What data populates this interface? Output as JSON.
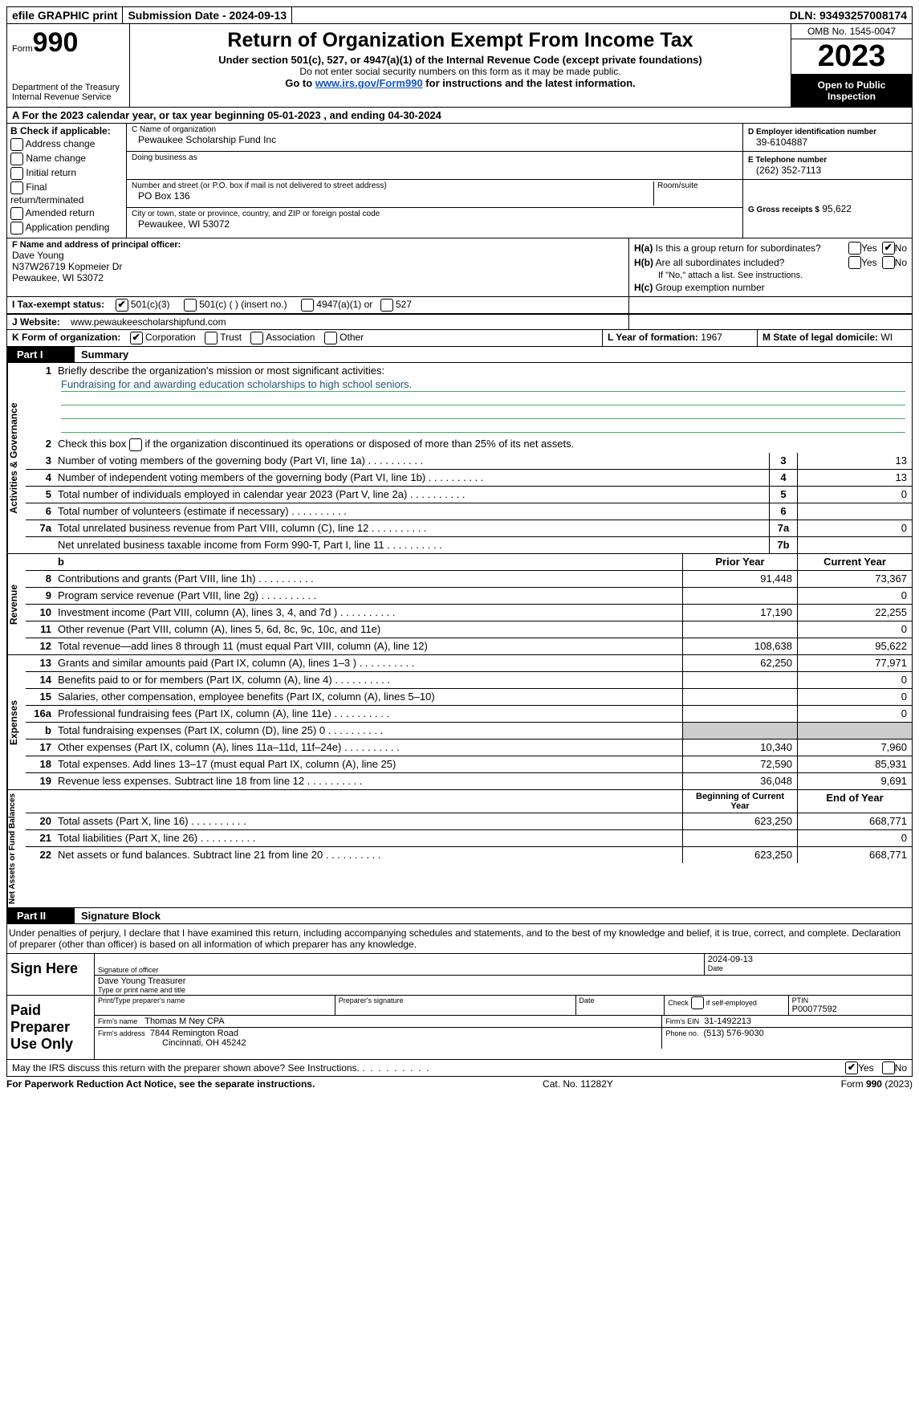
{
  "topbar": {
    "efile": "efile GRAPHIC print",
    "submission": "Submission Date - 2024-09-13",
    "dln": "DLN: 93493257008174"
  },
  "header": {
    "form_prefix": "Form",
    "form_number": "990",
    "title": "Return of Organization Exempt From Income Tax",
    "subtitle": "Under section 501(c), 527, or 4947(a)(1) of the Internal Revenue Code (except private foundations)",
    "note1": "Do not enter social security numbers on this form as it may be made public.",
    "note2_prefix": "Go to ",
    "note2_link": "www.irs.gov/Form990",
    "note2_suffix": " for instructions and the latest information.",
    "dept": "Department of the Treasury Internal Revenue Service",
    "omb": "OMB No. 1545-0047",
    "year": "2023",
    "open": "Open to Public Inspection"
  },
  "line_a": "A For the 2023 calendar year, or tax year beginning 05-01-2023   , and ending 04-30-2024",
  "box_b": {
    "title": "B Check if applicable:",
    "items": [
      "Address change",
      "Name change",
      "Initial return",
      "Final return/terminated",
      "Amended return",
      "Application pending"
    ]
  },
  "box_c": {
    "name_label": "C Name of organization",
    "name": "Pewaukee Scholarship Fund Inc",
    "dba_label": "Doing business as",
    "dba": "",
    "street_label": "Number and street (or P.O. box if mail is not delivered to street address)",
    "room_label": "Room/suite",
    "street": "PO Box 136",
    "city_label": "City or town, state or province, country, and ZIP or foreign postal code",
    "city": "Pewaukee, WI  53072"
  },
  "box_d": {
    "ein_label": "D Employer identification number",
    "ein": "39-6104887",
    "phone_label": "E Telephone number",
    "phone": "(262) 352-7113",
    "receipts_label": "G Gross receipts $",
    "receipts": "95,622"
  },
  "box_f": {
    "label": "F  Name and address of principal officer:",
    "name": "Dave Young",
    "addr1": "N37W26719 Kopmeier Dr",
    "addr2": "Pewaukee, WI  53072"
  },
  "box_h": {
    "a_label": "H(a)  Is this a group return for subordinates?",
    "b_label": "H(b)  Are all subordinates included?",
    "b_note": "If \"No,\" attach a list. See instructions.",
    "c_label": "H(c)  Group exemption number",
    "yes": "Yes",
    "no": "No"
  },
  "box_i": {
    "label": "I   Tax-exempt status:",
    "opt1": "501(c)(3)",
    "opt2": "501(c) (   ) (insert no.)",
    "opt3": "4947(a)(1) or",
    "opt4": "527"
  },
  "box_j": {
    "label": "J   Website:",
    "value": "www.pewaukeescholarshipfund.com"
  },
  "box_k": {
    "label": "K Form of organization:",
    "opts": [
      "Corporation",
      "Trust",
      "Association",
      "Other"
    ]
  },
  "box_l": {
    "label": "L Year of formation:",
    "value": "1967"
  },
  "box_m": {
    "label": "M State of legal domicile:",
    "value": "WI"
  },
  "part1": {
    "label": "Part I",
    "title": "Summary",
    "line1_label": "Briefly describe the organization's mission or most significant activities:",
    "mission": "Fundraising for and awarding education scholarships to high school seniors.",
    "line2": "Check this box      if the organization discontinued its operations or disposed of more than 25% of its net assets.",
    "rows_gov": [
      {
        "n": "3",
        "d": "Number of voting members of the governing body (Part VI, line 1a)",
        "box": "3",
        "v": "13"
      },
      {
        "n": "4",
        "d": "Number of independent voting members of the governing body (Part VI, line 1b)",
        "box": "4",
        "v": "13"
      },
      {
        "n": "5",
        "d": "Total number of individuals employed in calendar year 2023 (Part V, line 2a)",
        "box": "5",
        "v": "0"
      },
      {
        "n": "6",
        "d": "Total number of volunteers (estimate if necessary)",
        "box": "6",
        "v": ""
      },
      {
        "n": "7a",
        "d": "Total unrelated business revenue from Part VIII, column (C), line 12",
        "box": "7a",
        "v": "0"
      },
      {
        "n": "",
        "d": "Net unrelated business taxable income from Form 990-T, Part I, line 11",
        "box": "7b",
        "v": ""
      }
    ],
    "col_headers": {
      "prior": "Prior Year",
      "current": "Current Year"
    },
    "rows_rev": [
      {
        "n": "8",
        "d": "Contributions and grants (Part VIII, line 1h)",
        "p": "91,448",
        "c": "73,367"
      },
      {
        "n": "9",
        "d": "Program service revenue (Part VIII, line 2g)",
        "p": "",
        "c": "0"
      },
      {
        "n": "10",
        "d": "Investment income (Part VIII, column (A), lines 3, 4, and 7d )",
        "p": "17,190",
        "c": "22,255"
      },
      {
        "n": "11",
        "d": "Other revenue (Part VIII, column (A), lines 5, 6d, 8c, 9c, 10c, and 11e)",
        "p": "",
        "c": "0"
      },
      {
        "n": "12",
        "d": "Total revenue—add lines 8 through 11 (must equal Part VIII, column (A), line 12)",
        "p": "108,638",
        "c": "95,622"
      }
    ],
    "rows_exp": [
      {
        "n": "13",
        "d": "Grants and similar amounts paid (Part IX, column (A), lines 1–3 )",
        "p": "62,250",
        "c": "77,971"
      },
      {
        "n": "14",
        "d": "Benefits paid to or for members (Part IX, column (A), line 4)",
        "p": "",
        "c": "0"
      },
      {
        "n": "15",
        "d": "Salaries, other compensation, employee benefits (Part IX, column (A), lines 5–10)",
        "p": "",
        "c": "0"
      },
      {
        "n": "16a",
        "d": "Professional fundraising fees (Part IX, column (A), line 11e)",
        "p": "",
        "c": "0"
      },
      {
        "n": "b",
        "d": "Total fundraising expenses (Part IX, column (D), line 25) 0",
        "p": "shaded",
        "c": "shaded"
      },
      {
        "n": "17",
        "d": "Other expenses (Part IX, column (A), lines 11a–11d, 11f–24e)",
        "p": "10,340",
        "c": "7,960"
      },
      {
        "n": "18",
        "d": "Total expenses. Add lines 13–17 (must equal Part IX, column (A), line 25)",
        "p": "72,590",
        "c": "85,931"
      },
      {
        "n": "19",
        "d": "Revenue less expenses. Subtract line 18 from line 12",
        "p": "36,048",
        "c": "9,691"
      }
    ],
    "col_headers2": {
      "begin": "Beginning of Current Year",
      "end": "End of Year"
    },
    "rows_net": [
      {
        "n": "20",
        "d": "Total assets (Part X, line 16)",
        "p": "623,250",
        "c": "668,771"
      },
      {
        "n": "21",
        "d": "Total liabilities (Part X, line 26)",
        "p": "",
        "c": "0"
      },
      {
        "n": "22",
        "d": "Net assets or fund balances. Subtract line 21 from line 20",
        "p": "623,250",
        "c": "668,771"
      }
    ],
    "side_labels": {
      "gov": "Activities & Governance",
      "rev": "Revenue",
      "exp": "Expenses",
      "net": "Net Assets or Fund Balances"
    }
  },
  "part2": {
    "label": "Part II",
    "title": "Signature Block",
    "declaration": "Under penalties of perjury, I declare that I have examined this return, including accompanying schedules and statements, and to the best of my knowledge and belief, it is true, correct, and complete. Declaration of preparer (other than officer) is based on all information of which preparer has any knowledge."
  },
  "sign_here": {
    "label": "Sign Here",
    "sig_label": "Signature of officer",
    "date_label": "Date",
    "date": "2024-09-13",
    "name": "Dave Young  Treasurer",
    "name_label": "Type or print name and title"
  },
  "paid_prep": {
    "label": "Paid Preparer Use Only",
    "col1": "Print/Type preparer's name",
    "col2": "Preparer's signature",
    "col3": "Date",
    "col4_pre": "Check",
    "col4": "if self-employed",
    "col5_label": "PTIN",
    "ptin": "P00077592",
    "firm_name_label": "Firm's name",
    "firm_name": "Thomas M Ney CPA",
    "firm_ein_label": "Firm's EIN",
    "firm_ein": "31-1492213",
    "firm_addr_label": "Firm's address",
    "firm_addr1": "7844 Remington Road",
    "firm_addr2": "Cincinnati, OH  45242",
    "phone_label": "Phone no.",
    "phone": "(513) 576-9030"
  },
  "discuss": {
    "text": "May the IRS discuss this return with the preparer shown above? See Instructions.",
    "yes": "Yes",
    "no": "No"
  },
  "footer": {
    "left": "For Paperwork Reduction Act Notice, see the separate instructions.",
    "mid": "Cat. No. 11282Y",
    "right_pre": "Form ",
    "right_form": "990",
    "right_suf": " (2023)"
  }
}
